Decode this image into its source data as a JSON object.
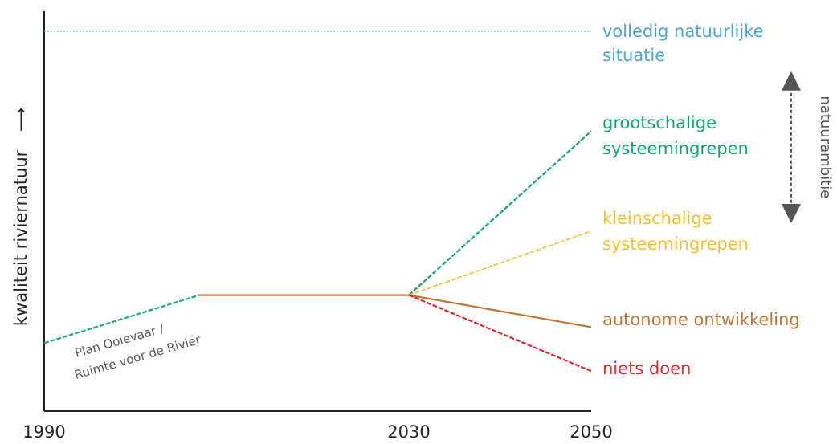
{
  "chart_data": {
    "type": "line",
    "xlabel": "",
    "ylabel": "kwaliteit riviernatuur",
    "ylabel_arrow": "⟶",
    "x_ticks": [
      "1990",
      "2030",
      "2050"
    ],
    "x_range": [
      1990,
      2050
    ],
    "y_range": [
      0,
      100
    ],
    "grid": false,
    "history": {
      "color": "#1fae6e",
      "points": [
        {
          "x": 1990,
          "y": 17
        },
        {
          "x": 2007,
          "y": 29
        }
      ],
      "label_lines": [
        "Plan Ooievaar /",
        "Ruimte voor de Rivier"
      ]
    },
    "plateau": {
      "color": "#b5703a",
      "points": [
        {
          "x": 2007,
          "y": 29
        },
        {
          "x": 2030,
          "y": 29
        }
      ]
    },
    "reference": {
      "color": "#4ba3d6",
      "y": 95,
      "label_lines": [
        "volledig natuurlijke",
        "situatie"
      ]
    },
    "series": [
      {
        "name_lines": [
          "grootschalige",
          "systeemingrepen"
        ],
        "color": "#12a865",
        "start": {
          "x": 2030,
          "y": 29
        },
        "end": {
          "x": 2050,
          "y": 70
        }
      },
      {
        "name_lines": [
          "kleinschalige",
          "systeemingrepen"
        ],
        "color": "#f2c12e",
        "start": {
          "x": 2030,
          "y": 29
        },
        "end": {
          "x": 2050,
          "y": 45
        }
      },
      {
        "name_lines": [
          "autonome ontwikkeling"
        ],
        "color": "#c27336",
        "start": {
          "x": 2030,
          "y": 29
        },
        "end": {
          "x": 2050,
          "y": 21
        }
      },
      {
        "name_lines": [
          "niets doen"
        ],
        "color": "#e3262e",
        "start": {
          "x": 2030,
          "y": 29
        },
        "end": {
          "x": 2050,
          "y": 10
        }
      }
    ],
    "ambition": {
      "label": "natuurambitie",
      "color": "#555555",
      "y_top": 85,
      "y_bottom": 47
    }
  }
}
